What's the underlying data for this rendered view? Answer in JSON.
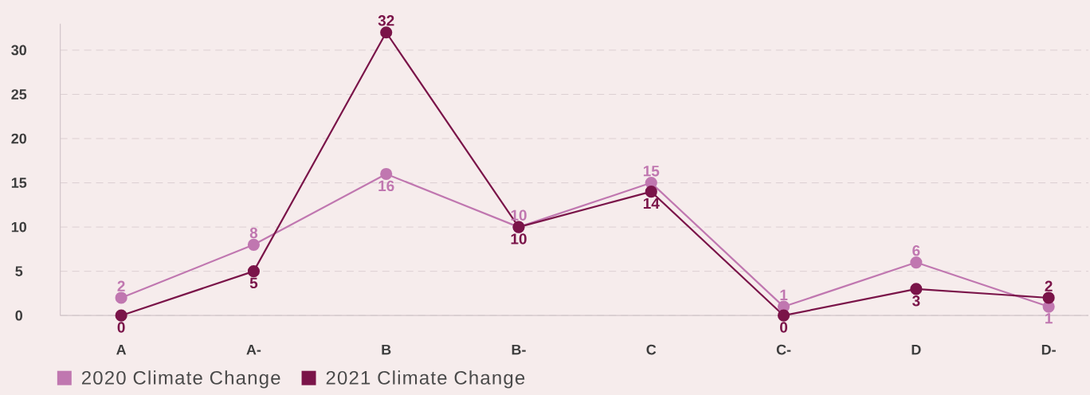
{
  "chart_data": {
    "type": "line",
    "categories": [
      "A",
      "A-",
      "B",
      "B-",
      "C",
      "C-",
      "D",
      "D-"
    ],
    "series": [
      {
        "name": "2020 Climate Change",
        "color": "#c077b0",
        "values": [
          2,
          8,
          16,
          10,
          15,
          1,
          6,
          1
        ]
      },
      {
        "name": "2021 Climate Change",
        "color": "#7a1449",
        "values": [
          0,
          5,
          32,
          10,
          14,
          0,
          3,
          2
        ]
      }
    ],
    "ylim": [
      0,
      33
    ],
    "yticks": [
      0,
      5,
      10,
      15,
      20,
      25,
      30
    ],
    "grid": "y",
    "legend": "bottom left",
    "marker": "circle",
    "line_style": "solid",
    "data_labels": true
  }
}
